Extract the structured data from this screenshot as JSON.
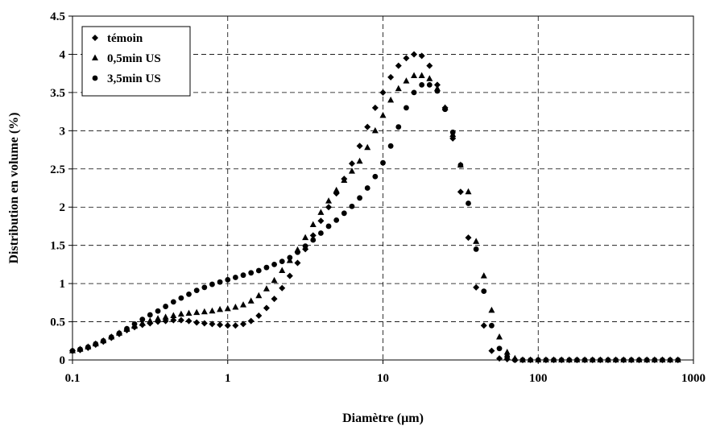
{
  "chart_data": {
    "type": "scatter",
    "title": "",
    "xlabel": "Diamètre (µm)",
    "ylabel": "Distribution en volume (%)",
    "x_scale": "log",
    "xlim": [
      0.1,
      1000
    ],
    "ylim": [
      0,
      4.5
    ],
    "x_ticks": [
      "0.1",
      "1",
      "10",
      "100",
      "1000"
    ],
    "y_ticks": [
      "0",
      "0.5",
      "1",
      "1.5",
      "2",
      "2.5",
      "3",
      "3.5",
      "4",
      "4.5"
    ],
    "grid": true,
    "legend_position": "top-left",
    "series": [
      {
        "name": "témoin",
        "marker": "diamond",
        "x": [
          0.1,
          0.112,
          0.126,
          0.141,
          0.158,
          0.178,
          0.2,
          0.224,
          0.251,
          0.282,
          0.316,
          0.355,
          0.398,
          0.447,
          0.501,
          0.562,
          0.631,
          0.708,
          0.794,
          0.891,
          1.0,
          1.122,
          1.259,
          1.413,
          1.585,
          1.778,
          1.995,
          2.239,
          2.512,
          2.818,
          3.162,
          3.548,
          3.981,
          4.467,
          5.012,
          5.623,
          6.31,
          7.079,
          7.943,
          8.913,
          10.0,
          11.22,
          12.59,
          14.13,
          15.85,
          17.78,
          19.95,
          22.39,
          25.12,
          28.18,
          31.62,
          35.48,
          39.81,
          44.67,
          50.12,
          56.23,
          63.1,
          70.79,
          79.43,
          89.13,
          100,
          112.2,
          125.9,
          141.3,
          158.5,
          177.8,
          199.5,
          223.9,
          251.2,
          281.8,
          316.2,
          354.8,
          398.1,
          446.7,
          501.2,
          562.3,
          631,
          707.9,
          794.3
        ],
        "values": [
          0.12,
          0.13,
          0.16,
          0.2,
          0.24,
          0.29,
          0.34,
          0.39,
          0.43,
          0.46,
          0.48,
          0.5,
          0.51,
          0.52,
          0.52,
          0.51,
          0.49,
          0.48,
          0.47,
          0.46,
          0.45,
          0.45,
          0.47,
          0.51,
          0.58,
          0.68,
          0.8,
          0.94,
          1.1,
          1.27,
          1.45,
          1.63,
          1.82,
          2.0,
          2.18,
          2.37,
          2.57,
          2.8,
          3.05,
          3.3,
          3.5,
          3.7,
          3.85,
          3.95,
          4.0,
          3.98,
          3.85,
          3.6,
          3.3,
          2.9,
          2.2,
          1.6,
          0.95,
          0.45,
          0.12,
          0.02,
          0.01,
          0,
          0,
          0,
          0,
          0,
          0,
          0,
          0,
          0,
          0,
          0,
          0,
          0,
          0,
          0,
          0,
          0,
          0,
          0,
          0,
          0,
          0
        ]
      },
      {
        "name": "0,5min US",
        "marker": "triangle",
        "x": [
          0.1,
          0.112,
          0.126,
          0.141,
          0.158,
          0.178,
          0.2,
          0.224,
          0.251,
          0.282,
          0.316,
          0.355,
          0.398,
          0.447,
          0.501,
          0.562,
          0.631,
          0.708,
          0.794,
          0.891,
          1.0,
          1.122,
          1.259,
          1.413,
          1.585,
          1.778,
          1.995,
          2.239,
          2.512,
          2.818,
          3.162,
          3.548,
          3.981,
          4.467,
          5.012,
          5.623,
          6.31,
          7.079,
          7.943,
          8.913,
          10.0,
          11.22,
          12.59,
          14.13,
          15.85,
          17.78,
          19.95,
          22.39,
          25.12,
          28.18,
          31.62,
          35.48,
          39.81,
          44.67,
          50.12,
          56.23,
          63.1,
          70.79,
          79.43,
          89.13,
          100,
          112.2,
          125.9,
          141.3,
          158.5,
          177.8,
          199.5,
          223.9,
          251.2,
          281.8,
          316.2,
          354.8,
          398.1,
          446.7,
          501.2,
          562.3,
          631,
          707.9,
          794.3
        ],
        "values": [
          0.12,
          0.14,
          0.17,
          0.21,
          0.25,
          0.3,
          0.35,
          0.4,
          0.44,
          0.48,
          0.51,
          0.54,
          0.56,
          0.58,
          0.6,
          0.61,
          0.62,
          0.63,
          0.64,
          0.66,
          0.67,
          0.69,
          0.72,
          0.77,
          0.84,
          0.93,
          1.04,
          1.17,
          1.3,
          1.44,
          1.6,
          1.77,
          1.93,
          2.08,
          2.22,
          2.35,
          2.47,
          2.6,
          2.78,
          3.0,
          3.2,
          3.4,
          3.55,
          3.65,
          3.72,
          3.72,
          3.68,
          3.55,
          3.3,
          2.95,
          2.55,
          2.2,
          1.55,
          1.1,
          0.65,
          0.3,
          0.1,
          0.02,
          0,
          0,
          0,
          0,
          0,
          0,
          0,
          0,
          0,
          0,
          0,
          0,
          0,
          0,
          0,
          0,
          0,
          0,
          0,
          0,
          0
        ]
      },
      {
        "name": "3,5min US",
        "marker": "circle",
        "x": [
          0.1,
          0.112,
          0.126,
          0.141,
          0.158,
          0.178,
          0.2,
          0.224,
          0.251,
          0.282,
          0.316,
          0.355,
          0.398,
          0.447,
          0.501,
          0.562,
          0.631,
          0.708,
          0.794,
          0.891,
          1.0,
          1.122,
          1.259,
          1.413,
          1.585,
          1.778,
          1.995,
          2.239,
          2.512,
          2.818,
          3.162,
          3.548,
          3.981,
          4.467,
          5.012,
          5.623,
          6.31,
          7.079,
          7.943,
          8.913,
          10.0,
          11.22,
          12.59,
          14.13,
          15.85,
          17.78,
          19.95,
          22.39,
          25.12,
          28.18,
          31.62,
          35.48,
          39.81,
          44.67,
          50.12,
          56.23,
          63.1,
          70.79,
          79.43,
          89.13,
          100,
          112.2,
          125.9,
          141.3,
          158.5,
          177.8,
          199.5,
          223.9,
          251.2,
          281.8,
          316.2,
          354.8,
          398.1,
          446.7,
          501.2,
          562.3,
          631,
          707.9,
          794.3
        ],
        "values": [
          0.12,
          0.14,
          0.17,
          0.21,
          0.25,
          0.3,
          0.35,
          0.41,
          0.47,
          0.53,
          0.59,
          0.64,
          0.7,
          0.76,
          0.81,
          0.86,
          0.91,
          0.95,
          0.99,
          1.02,
          1.05,
          1.08,
          1.11,
          1.14,
          1.17,
          1.21,
          1.25,
          1.29,
          1.34,
          1.41,
          1.49,
          1.57,
          1.66,
          1.75,
          1.83,
          1.92,
          2.01,
          2.12,
          2.25,
          2.4,
          2.58,
          2.8,
          3.05,
          3.3,
          3.5,
          3.6,
          3.6,
          3.52,
          3.28,
          2.98,
          2.55,
          2.05,
          1.45,
          0.9,
          0.45,
          0.15,
          0.04,
          0,
          0,
          0,
          0,
          0,
          0,
          0,
          0,
          0,
          0,
          0,
          0,
          0,
          0,
          0,
          0,
          0,
          0,
          0,
          0,
          0,
          0
        ]
      }
    ]
  }
}
